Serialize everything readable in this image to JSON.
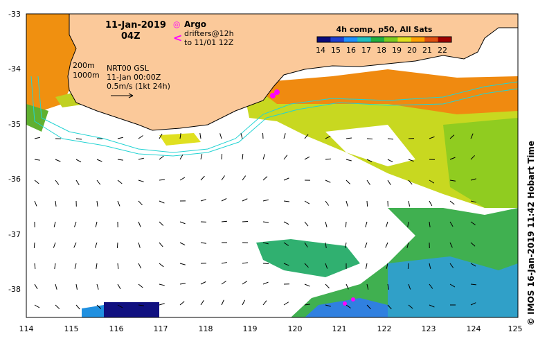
{
  "title": {
    "date": "11-Jan-2019",
    "time": "04Z"
  },
  "legend": {
    "argo_symbol": "◎",
    "argo_label": "Argo",
    "drifter_symbol": "<",
    "drifter_line1": "drifters@12h",
    "drifter_line2": "to 11/01 12Z",
    "depth_200": "200m",
    "depth_1000": "1000m",
    "gsl_line1": "NRT00 GSL",
    "gsl_line2": "11-Jan 00:00Z",
    "gsl_line3": "0.5m/s (1kt 24h)"
  },
  "colorbar": {
    "title": "4h comp, p50, All Sats",
    "ticks": [
      "14",
      "15",
      "16",
      "17",
      "18",
      "19",
      "20",
      "21",
      "22"
    ],
    "colors": [
      "#0a0a7a",
      "#1e3fd0",
      "#1e90ff",
      "#20c0c0",
      "#20b040",
      "#7ccc20",
      "#e0e020",
      "#ffa000",
      "#e05010",
      "#a00000"
    ]
  },
  "axes": {
    "x_ticks": [
      "114",
      "115",
      "116",
      "117",
      "118",
      "119",
      "120",
      "121",
      "122",
      "123",
      "124",
      "125"
    ],
    "y_ticks": [
      "-33",
      "-34",
      "-35",
      "-36",
      "-37",
      "-38"
    ],
    "xlim": [
      114,
      125
    ],
    "ylim": [
      -38.5,
      -33
    ]
  },
  "credit": "© IMOS 16-Jan-2019 11:42 Hobart Time",
  "colors": {
    "land": "#fbc99a",
    "coast": "#000000",
    "isobath": "#22d3d3",
    "argo": "#ff00ff"
  }
}
